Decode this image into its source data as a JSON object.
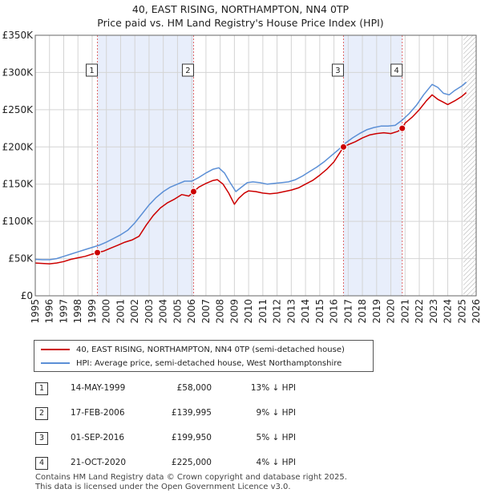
{
  "title_line1": "40, EAST RISING, NORTHAMPTON, NN4 0TP",
  "title_line2": "Price paid vs. HM Land Registry's House Price Index (HPI)",
  "colors": {
    "property": "#cc0000",
    "hpi": "#5b8fd6",
    "band": "#e8eefb",
    "marker": "#cc0000"
  },
  "legend": {
    "property": "40, EAST RISING, NORTHAMPTON, NN4 0TP (semi-detached house)",
    "hpi": "HPI: Average price, semi-detached house, West Northamptonshire"
  },
  "sales": [
    {
      "num": "1",
      "date": "14-MAY-1999",
      "price": "£58,000",
      "hpi": "13% ↓ HPI"
    },
    {
      "num": "2",
      "date": "17-FEB-2006",
      "price": "£139,995",
      "hpi": "9% ↓ HPI"
    },
    {
      "num": "3",
      "date": "01-SEP-2016",
      "price": "£199,950",
      "hpi": "5% ↓ HPI"
    },
    {
      "num": "4",
      "date": "21-OCT-2020",
      "price": "£225,000",
      "hpi": "4% ↓ HPI"
    }
  ],
  "footer_line1": "Contains HM Land Registry data © Crown copyright and database right 2025.",
  "footer_line2": "This data is licensed under the Open Government Licence v3.0.",
  "chart_data": {
    "type": "line",
    "title": "40, EAST RISING, NORTHAMPTON, NN4 0TP",
    "subtitle": "Price paid vs. HM Land Registry's House Price Index (HPI)",
    "xlabel": "",
    "ylabel": "",
    "xlim": [
      1995,
      2026
    ],
    "ylim": [
      0,
      350000
    ],
    "x_ticks": [
      "1995",
      "1996",
      "1997",
      "1998",
      "1999",
      "2000",
      "2001",
      "2002",
      "2003",
      "2004",
      "2005",
      "2006",
      "2007",
      "2008",
      "2009",
      "2010",
      "2011",
      "2012",
      "2013",
      "2014",
      "2015",
      "2016",
      "2017",
      "2018",
      "2019",
      "2020",
      "2021",
      "2022",
      "2023",
      "2024",
      "2025",
      "2026"
    ],
    "y_ticks": [
      {
        "value": 0,
        "label": "£0"
      },
      {
        "value": 50000,
        "label": "£50K"
      },
      {
        "value": 100000,
        "label": "£100K"
      },
      {
        "value": 150000,
        "label": "£150K"
      },
      {
        "value": 200000,
        "label": "£200K"
      },
      {
        "value": 250000,
        "label": "£250K"
      },
      {
        "value": 300000,
        "label": "£300K"
      },
      {
        "value": 350000,
        "label": "£350K"
      }
    ],
    "grid": true,
    "shaded_ranges": [
      [
        1999.37,
        2006.13
      ],
      [
        2016.67,
        2020.8
      ]
    ],
    "future_hatch_from": 2025.1,
    "series": [
      {
        "name": "40, EAST RISING, NORTHAMPTON, NN4 0TP (semi-detached house)",
        "x": [
          1995,
          1995.5,
          1996,
          1996.5,
          1997,
          1997.5,
          1998,
          1998.5,
          1999,
          1999.37,
          1999.8,
          2000.3,
          2000.8,
          2001.3,
          2001.8,
          2002.3,
          2002.8,
          2003.3,
          2003.8,
          2004.3,
          2004.8,
          2005.3,
          2005.8,
          2006.13,
          2006.5,
          2007,
          2007.5,
          2007.8,
          2008.2,
          2008.6,
          2009,
          2009.3,
          2009.7,
          2010,
          2010.5,
          2011,
          2011.5,
          2012,
          2012.5,
          2013,
          2013.5,
          2014,
          2014.5,
          2015,
          2015.5,
          2016,
          2016.67,
          2017,
          2017.5,
          2018,
          2018.5,
          2019,
          2019.5,
          2020,
          2020.5,
          2020.8,
          2021,
          2021.5,
          2022,
          2022.5,
          2022.9,
          2023.3,
          2023.7,
          2024,
          2024.5,
          2025,
          2025.3
        ],
        "values": [
          44000,
          43500,
          43000,
          44000,
          46000,
          49000,
          51000,
          53000,
          56000,
          58000,
          60000,
          64000,
          68000,
          72000,
          75000,
          80000,
          95000,
          108000,
          118000,
          125000,
          130000,
          136000,
          134000,
          139995,
          146000,
          151000,
          155000,
          156000,
          150000,
          138000,
          123000,
          131000,
          138000,
          141000,
          140000,
          138000,
          137000,
          138000,
          140000,
          142000,
          145000,
          150000,
          155000,
          162000,
          170000,
          180000,
          199950,
          203000,
          207000,
          212000,
          216000,
          218000,
          219000,
          218000,
          221000,
          225000,
          232000,
          240000,
          250000,
          262000,
          270000,
          264000,
          260000,
          257000,
          262000,
          268000,
          273000
        ]
      },
      {
        "name": "HPI: Average price, semi-detached house, West Northamptonshire",
        "x": [
          1995,
          1995.5,
          1996,
          1996.5,
          1997,
          1997.5,
          1998,
          1998.5,
          1999,
          1999.5,
          2000,
          2000.5,
          2001,
          2001.5,
          2002,
          2002.5,
          2003,
          2003.5,
          2004,
          2004.5,
          2005,
          2005.5,
          2006,
          2006.5,
          2007,
          2007.5,
          2007.9,
          2008.3,
          2008.7,
          2009.1,
          2009.5,
          2009.9,
          2010.3,
          2010.8,
          2011.3,
          2011.8,
          2012.3,
          2012.8,
          2013.3,
          2013.8,
          2014.3,
          2014.8,
          2015.3,
          2015.8,
          2016.3,
          2016.8,
          2017.3,
          2017.8,
          2018.3,
          2018.8,
          2019.3,
          2019.8,
          2020.3,
          2020.8,
          2021.3,
          2021.8,
          2022.3,
          2022.9,
          2023.3,
          2023.7,
          2024.1,
          2024.5,
          2025,
          2025.3
        ],
        "values": [
          49000,
          48500,
          48500,
          50000,
          53000,
          56000,
          59000,
          62000,
          65000,
          68000,
          72000,
          77000,
          82000,
          88000,
          98000,
          110000,
          122000,
          132000,
          140000,
          146000,
          150000,
          154000,
          154000,
          159000,
          165000,
          170000,
          172000,
          165000,
          152000,
          140000,
          146000,
          152000,
          153000,
          152000,
          150000,
          151000,
          152000,
          153000,
          156000,
          161000,
          167000,
          173000,
          180000,
          188000,
          196000,
          205000,
          212000,
          218000,
          223000,
          226000,
          228000,
          228000,
          229000,
          236000,
          245000,
          256000,
          270000,
          284000,
          280000,
          272000,
          270000,
          276000,
          282000,
          287000
        ]
      }
    ],
    "sales_markers": [
      {
        "label": "1",
        "x": 1999.37,
        "value": 58000
      },
      {
        "label": "2",
        "x": 2006.13,
        "value": 139995
      },
      {
        "label": "3",
        "x": 2016.67,
        "value": 199950
      },
      {
        "label": "4",
        "x": 2020.8,
        "value": 225000
      }
    ]
  }
}
